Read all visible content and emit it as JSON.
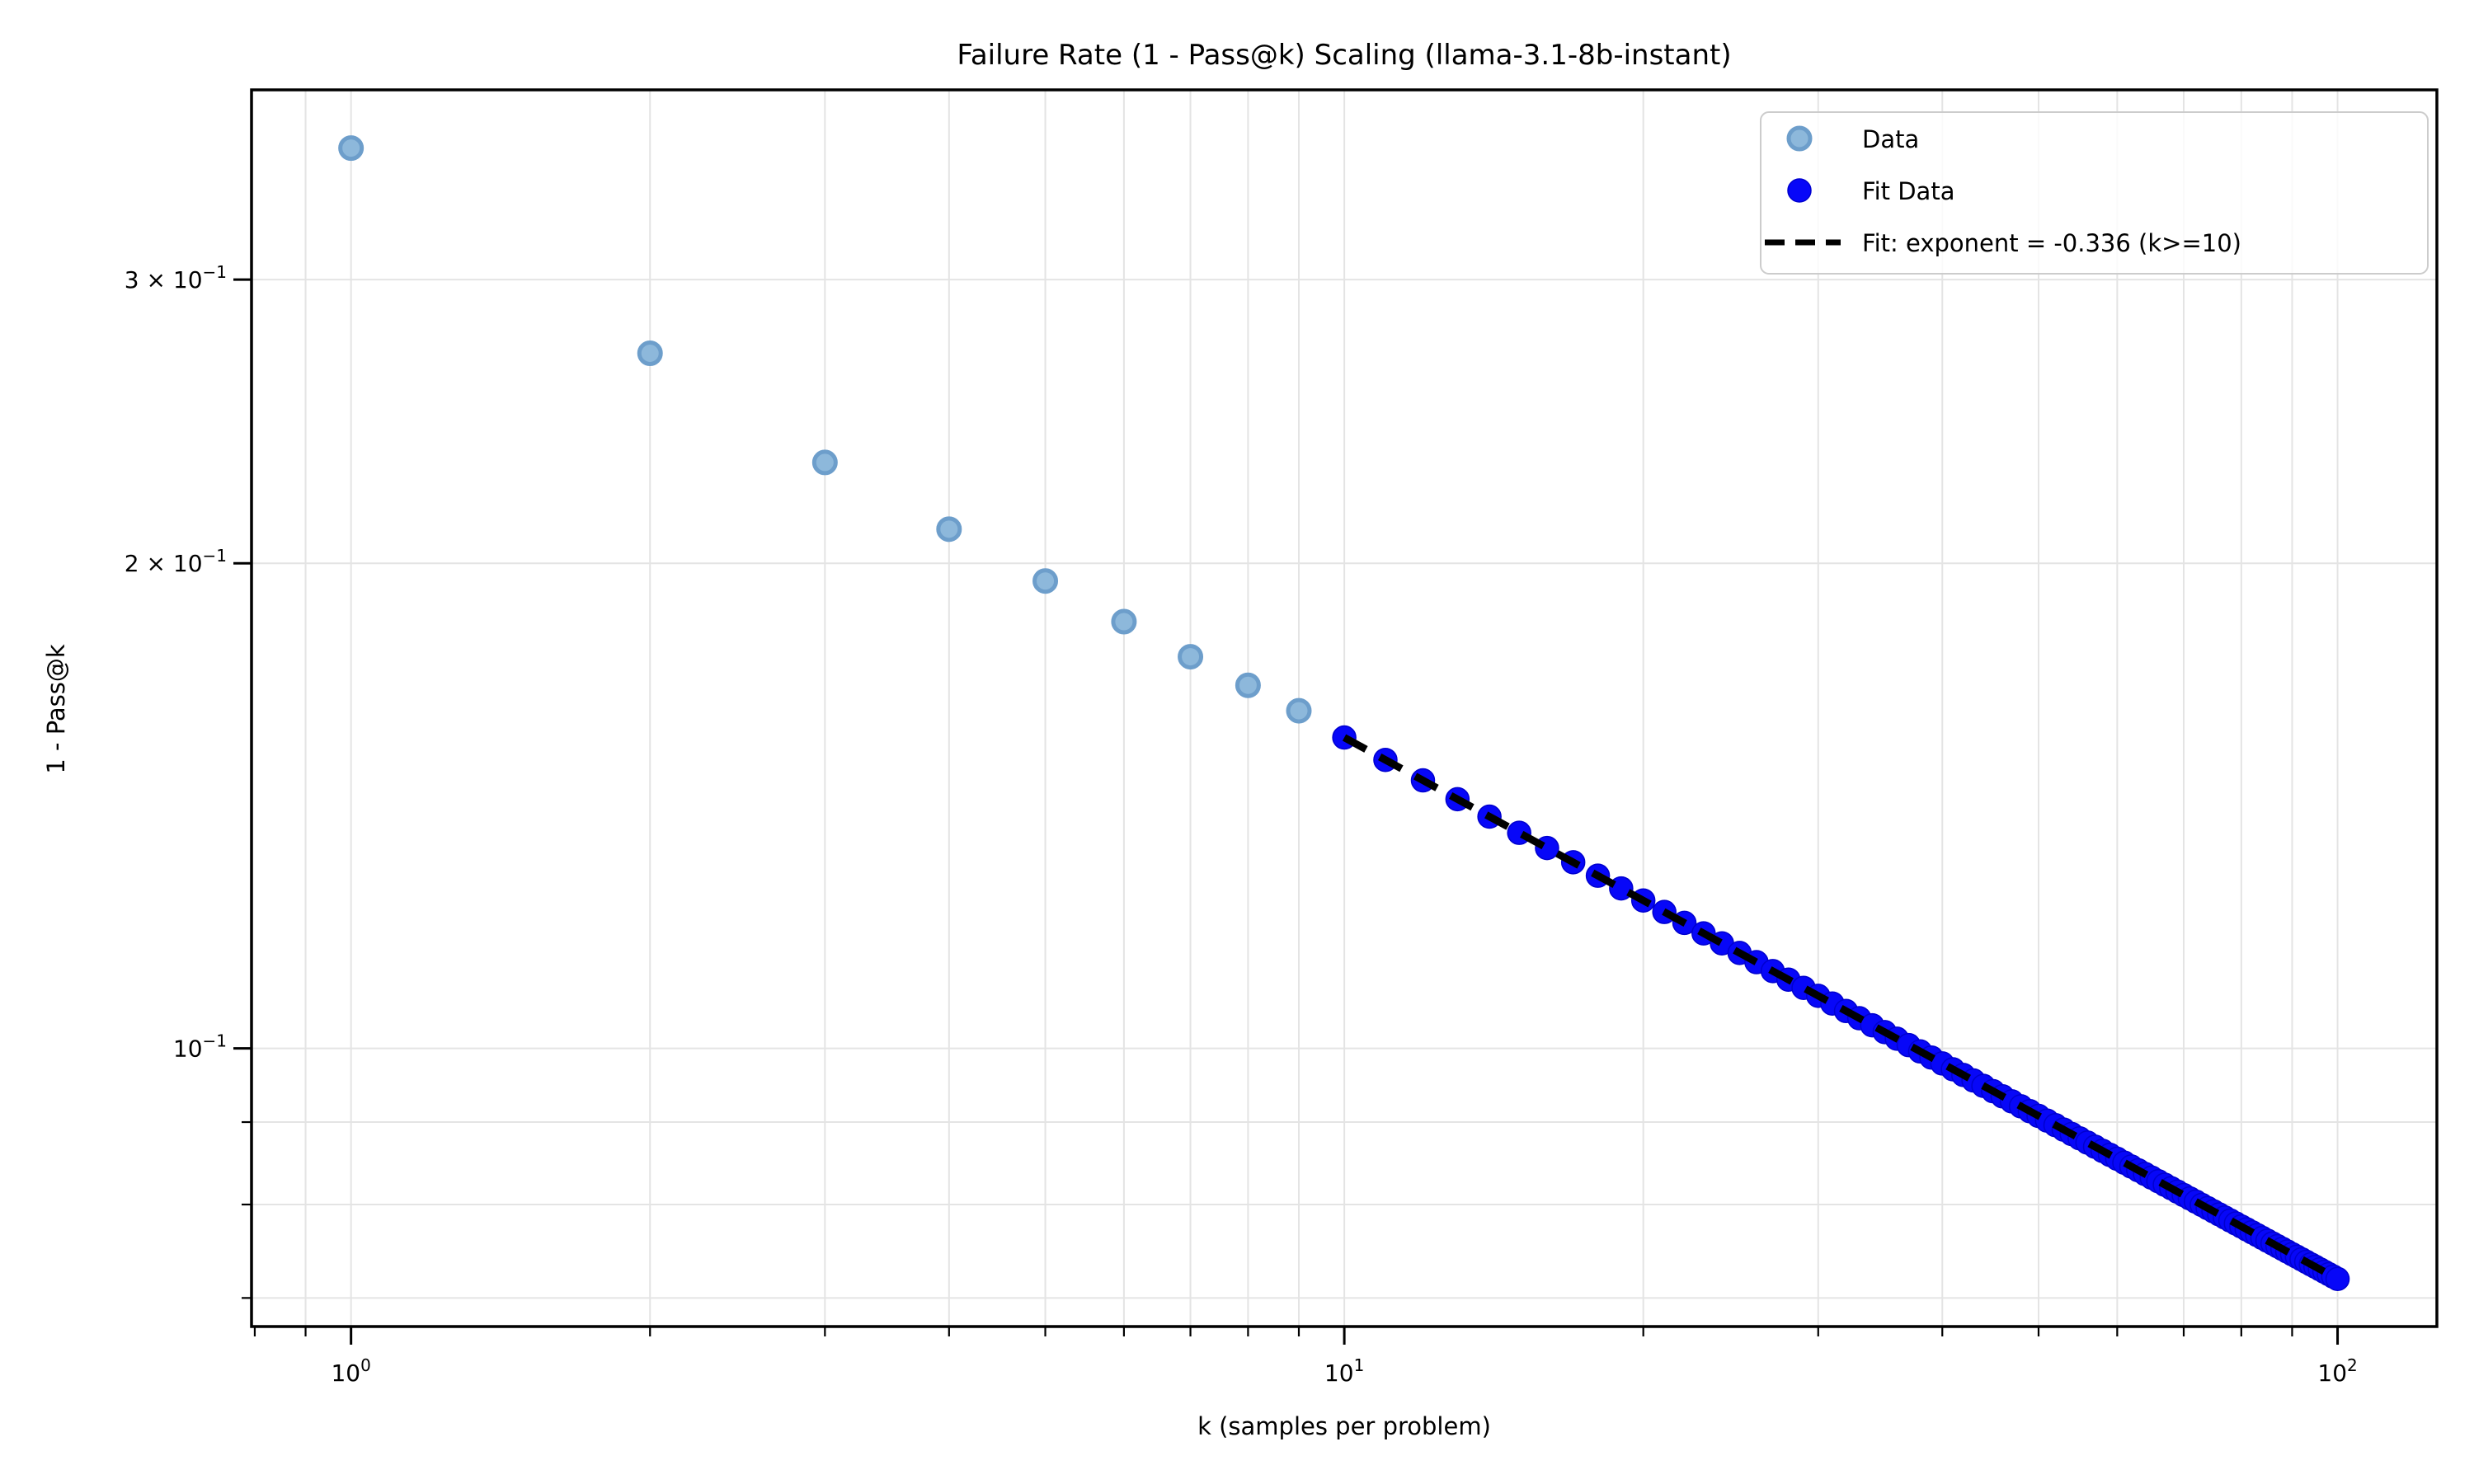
{
  "title": "Failure Rate (1 - Pass@k) Scaling (llama-3.1-8b-instant)",
  "xlabel": "k (samples per problem)",
  "ylabel": "1 - Pass@k",
  "legend": {
    "items": [
      {
        "label": "Data",
        "marker": "circle",
        "fill": "#8db8db",
        "edge": "#6d9ecb"
      },
      {
        "label": "Fit Data",
        "marker": "circle",
        "fill": "#0707f8",
        "edge": "#0000cf"
      },
      {
        "label": "Fit: exponent = -0.336 (k>=10)",
        "marker": "dashed-line",
        "color": "#000000"
      }
    ]
  },
  "chart_data": {
    "type": "scatter",
    "title": "Failure Rate (1 - Pass@k) Scaling (llama-3.1-8b-instant)",
    "xlabel": "k (samples per problem)",
    "ylabel": "1 - Pass@k",
    "x_scale": "log",
    "y_scale": "log",
    "xlim": [
      0.794,
      125.89
    ],
    "ylim": [
      0.0672,
      0.3934
    ],
    "grid": true,
    "legend_position": "upper right",
    "x_gridlines": [
      0.9,
      1,
      2,
      3,
      4,
      5,
      6,
      7,
      8,
      9,
      10,
      20,
      30,
      40,
      50,
      60,
      70,
      80,
      90,
      100
    ],
    "y_gridlines": [
      0.3,
      0.2,
      0.1,
      0.09,
      0.08,
      0.07
    ],
    "axis_ticks": {
      "x_major": [
        {
          "value": 1,
          "base": "10",
          "exp": "0"
        },
        {
          "value": 10,
          "base": "10",
          "exp": "1"
        },
        {
          "value": 100,
          "base": "10",
          "exp": "2"
        }
      ],
      "x_minor": [
        0.8,
        0.9,
        2,
        3,
        4,
        5,
        6,
        7,
        8,
        9,
        20,
        30,
        40,
        50,
        60,
        70,
        80,
        90
      ],
      "y_labeled": [
        {
          "value": 0.3,
          "coef": "3 × ",
          "base": "10",
          "exp": "−1"
        },
        {
          "value": 0.2,
          "coef": "2 × ",
          "base": "10",
          "exp": "−1"
        },
        {
          "value": 0.1,
          "coef": "",
          "base": "10",
          "exp": "−1"
        }
      ],
      "y_minor": [
        0.09,
        0.08,
        0.07
      ]
    },
    "series": [
      {
        "name": "Data",
        "style": "scatter",
        "fill": "#8db8db",
        "edge": "#6d9ecb",
        "marker_radius": 13,
        "x": [
          1,
          2,
          3,
          4,
          5,
          6,
          7,
          8,
          9
        ],
        "y": [
          0.362,
          0.27,
          0.231,
          0.21,
          0.195,
          0.184,
          0.175,
          0.168,
          0.162
        ]
      },
      {
        "name": "Fit Data",
        "style": "scatter",
        "fill": "#0707f8",
        "edge": "#0000cf",
        "marker_radius": 14,
        "x_start": 10,
        "x_end": 100,
        "x_step": 1,
        "power_law": {
          "coefficient": 0.338,
          "exponent": -0.336
        },
        "note": "y = 0.338 * k^(-0.336) for k = 10..100; at k=10 y≈0.156, at k=100 y≈0.0719"
      },
      {
        "name": "Fit: exponent = -0.336 (k>=10)",
        "style": "dashed-line",
        "color": "#000000",
        "x_start": 10,
        "x_end": 100,
        "power_law": {
          "coefficient": 0.338,
          "exponent": -0.336
        }
      }
    ]
  }
}
